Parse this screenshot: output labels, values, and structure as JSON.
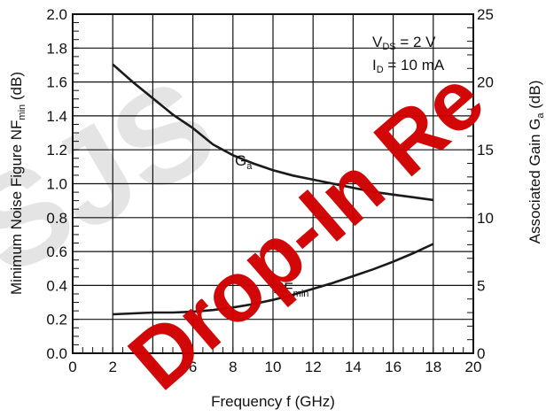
{
  "chart_data": {
    "type": "line",
    "x": [
      2,
      3,
      4,
      5,
      6,
      7,
      8,
      9,
      10,
      11,
      12,
      13,
      14,
      15,
      16,
      17,
      18
    ],
    "series": [
      {
        "name": "NFmin",
        "axis": "left",
        "values": [
          0.23,
          0.235,
          0.24,
          0.24,
          0.245,
          0.255,
          0.27,
          0.29,
          0.315,
          0.345,
          0.38,
          0.415,
          0.455,
          0.495,
          0.54,
          0.59,
          0.645
        ]
      },
      {
        "name": "Ga",
        "axis": "right",
        "values": [
          21.3,
          20.0,
          18.8,
          17.6,
          16.6,
          15.4,
          14.6,
          14.0,
          13.5,
          13.1,
          12.8,
          12.5,
          12.2,
          11.9,
          11.7,
          11.5,
          11.3
        ]
      }
    ],
    "xlabel": "Frequency  f (GHz)",
    "ylabel_left": "Minimum Noise Figure  NFmin (dB)",
    "ylabel_right": "Associated Gain  Ga (dB)",
    "xlim": [
      0,
      20
    ],
    "ylim_left": [
      0,
      2.0
    ],
    "ylim_right": [
      0,
      25
    ],
    "x_ticks": [
      "0",
      "2",
      "4",
      "6",
      "8",
      "10",
      "12",
      "14",
      "16",
      "18",
      "20"
    ],
    "y_ticks_left": [
      "0.0",
      "0.2",
      "0.4",
      "0.6",
      "0.8",
      "1.0",
      "1.2",
      "1.4",
      "1.6",
      "1.8",
      "2.0"
    ],
    "y_ticks_right": [
      "0",
      "5",
      "10",
      "15",
      "20",
      "25"
    ],
    "grid": true,
    "annotation": {
      "line1": "VDS = 2 V",
      "line2": "ID = 10 mA"
    },
    "curve_labels": {
      "ga": "Ga",
      "nf": "NFmin"
    },
    "watermark": "Drop-In Re",
    "colors": {
      "curve": "#1a1a1a",
      "grid": "#111111",
      "watermark": "#d10000",
      "watermark_ghost": "#e4e4e4"
    }
  }
}
